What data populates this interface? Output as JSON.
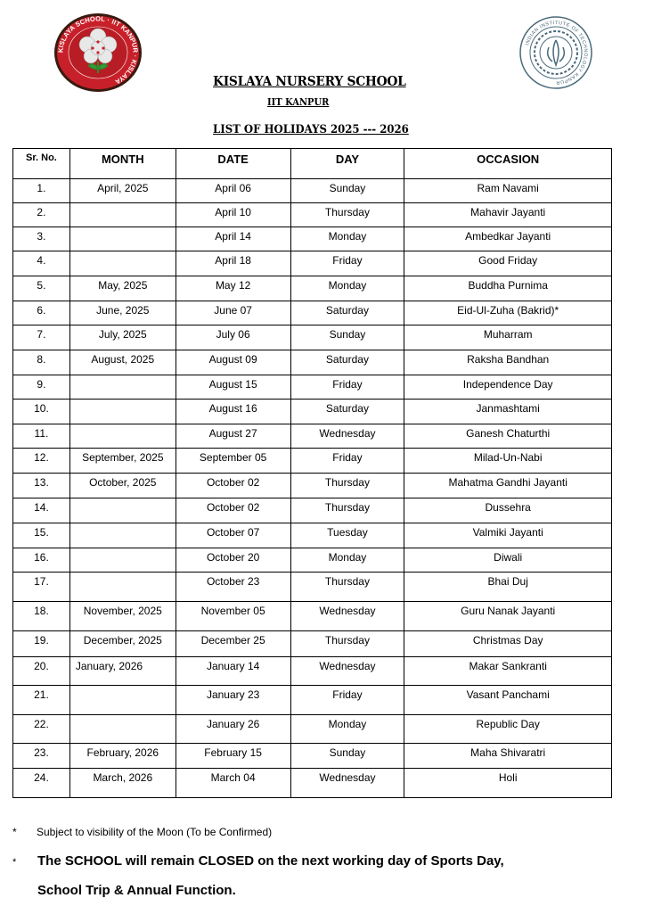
{
  "header": {
    "school_logo_text": "KISLAYA SCHOOL · IIT KANPUR · KISLAYA",
    "iit_logo_text": "INDIAN INSTITUTE OF TECHNOLOGY KANPUR",
    "title": "KISLAYA NURSERY SCHOOL",
    "subtitle": "IIT KANPUR",
    "list_title": "LIST OF HOLIDAYS 2025 --- 2026"
  },
  "table": {
    "columns": [
      "Sr. No.",
      "MONTH",
      "DATE",
      "DAY",
      "OCCASION"
    ],
    "rows": [
      [
        "1.",
        "April, 2025",
        "April 06",
        "Sunday",
        "Ram Navami"
      ],
      [
        "2.",
        "",
        "April 10",
        "Thursday",
        "Mahavir Jayanti"
      ],
      [
        "3.",
        "",
        "April 14",
        "Monday",
        "Ambedkar Jayanti"
      ],
      [
        "4.",
        "",
        "April 18",
        "Friday",
        "Good Friday"
      ],
      [
        "5.",
        "May, 2025",
        "May 12",
        "Monday",
        "Buddha Purnima"
      ],
      [
        "6.",
        "June, 2025",
        "June 07",
        "Saturday",
        "Eid-Ul-Zuha (Bakrid)*"
      ],
      [
        "7.",
        "July, 2025",
        "July 06",
        "Sunday",
        "Muharram"
      ],
      [
        "8.",
        "August, 2025",
        "August 09",
        "Saturday",
        "Raksha Bandhan"
      ],
      [
        "9.",
        "",
        "August 15",
        "Friday",
        "Independence Day"
      ],
      [
        "10.",
        "",
        "August 16",
        "Saturday",
        "Janmashtami"
      ],
      [
        "11.",
        "",
        "August 27",
        "Wednesday",
        "Ganesh Chaturthi"
      ],
      [
        "12.",
        "September, 2025",
        "September 05",
        "Friday",
        "Milad-Un-Nabi"
      ],
      [
        "13.",
        "October, 2025",
        "October 02",
        "Thursday",
        "Mahatma Gandhi Jayanti"
      ],
      [
        "14.",
        "",
        "October 02",
        "Thursday",
        "Dussehra"
      ],
      [
        "15.",
        "",
        "October 07",
        "Tuesday",
        "Valmiki Jayanti"
      ],
      [
        "16.",
        "",
        "October 20",
        "Monday",
        "Diwali"
      ],
      [
        "17.",
        "",
        "October 23",
        "Thursday",
        "Bhai Duj"
      ],
      [
        "18.",
        "November, 2025",
        "November 05",
        "Wednesday",
        "Guru Nanak Jayanti"
      ],
      [
        "19.",
        "December, 2025",
        "December 25",
        "Thursday",
        "Christmas Day"
      ],
      [
        "20.",
        "January, 2026",
        "January 14",
        "Wednesday",
        "Makar Sankranti"
      ],
      [
        "21.",
        "",
        "January 23",
        "Friday",
        "Vasant Panchami"
      ],
      [
        "22.",
        "",
        "January 26",
        "Monday",
        "Republic Day"
      ],
      [
        "23.",
        "February, 2026",
        "February 15",
        "Sunday",
        "Maha Shivaratri"
      ],
      [
        "24.",
        "March, 2026",
        "March 04",
        "Wednesday",
        "Holi"
      ]
    ]
  },
  "notes": {
    "star": "*",
    "moon": "Subject to visibility of the Moon (To be Confirmed)",
    "closed_line1": "The SCHOOL will remain CLOSED on the next working day of Sports Day,",
    "closed_line2": "School Trip & Annual Function."
  }
}
